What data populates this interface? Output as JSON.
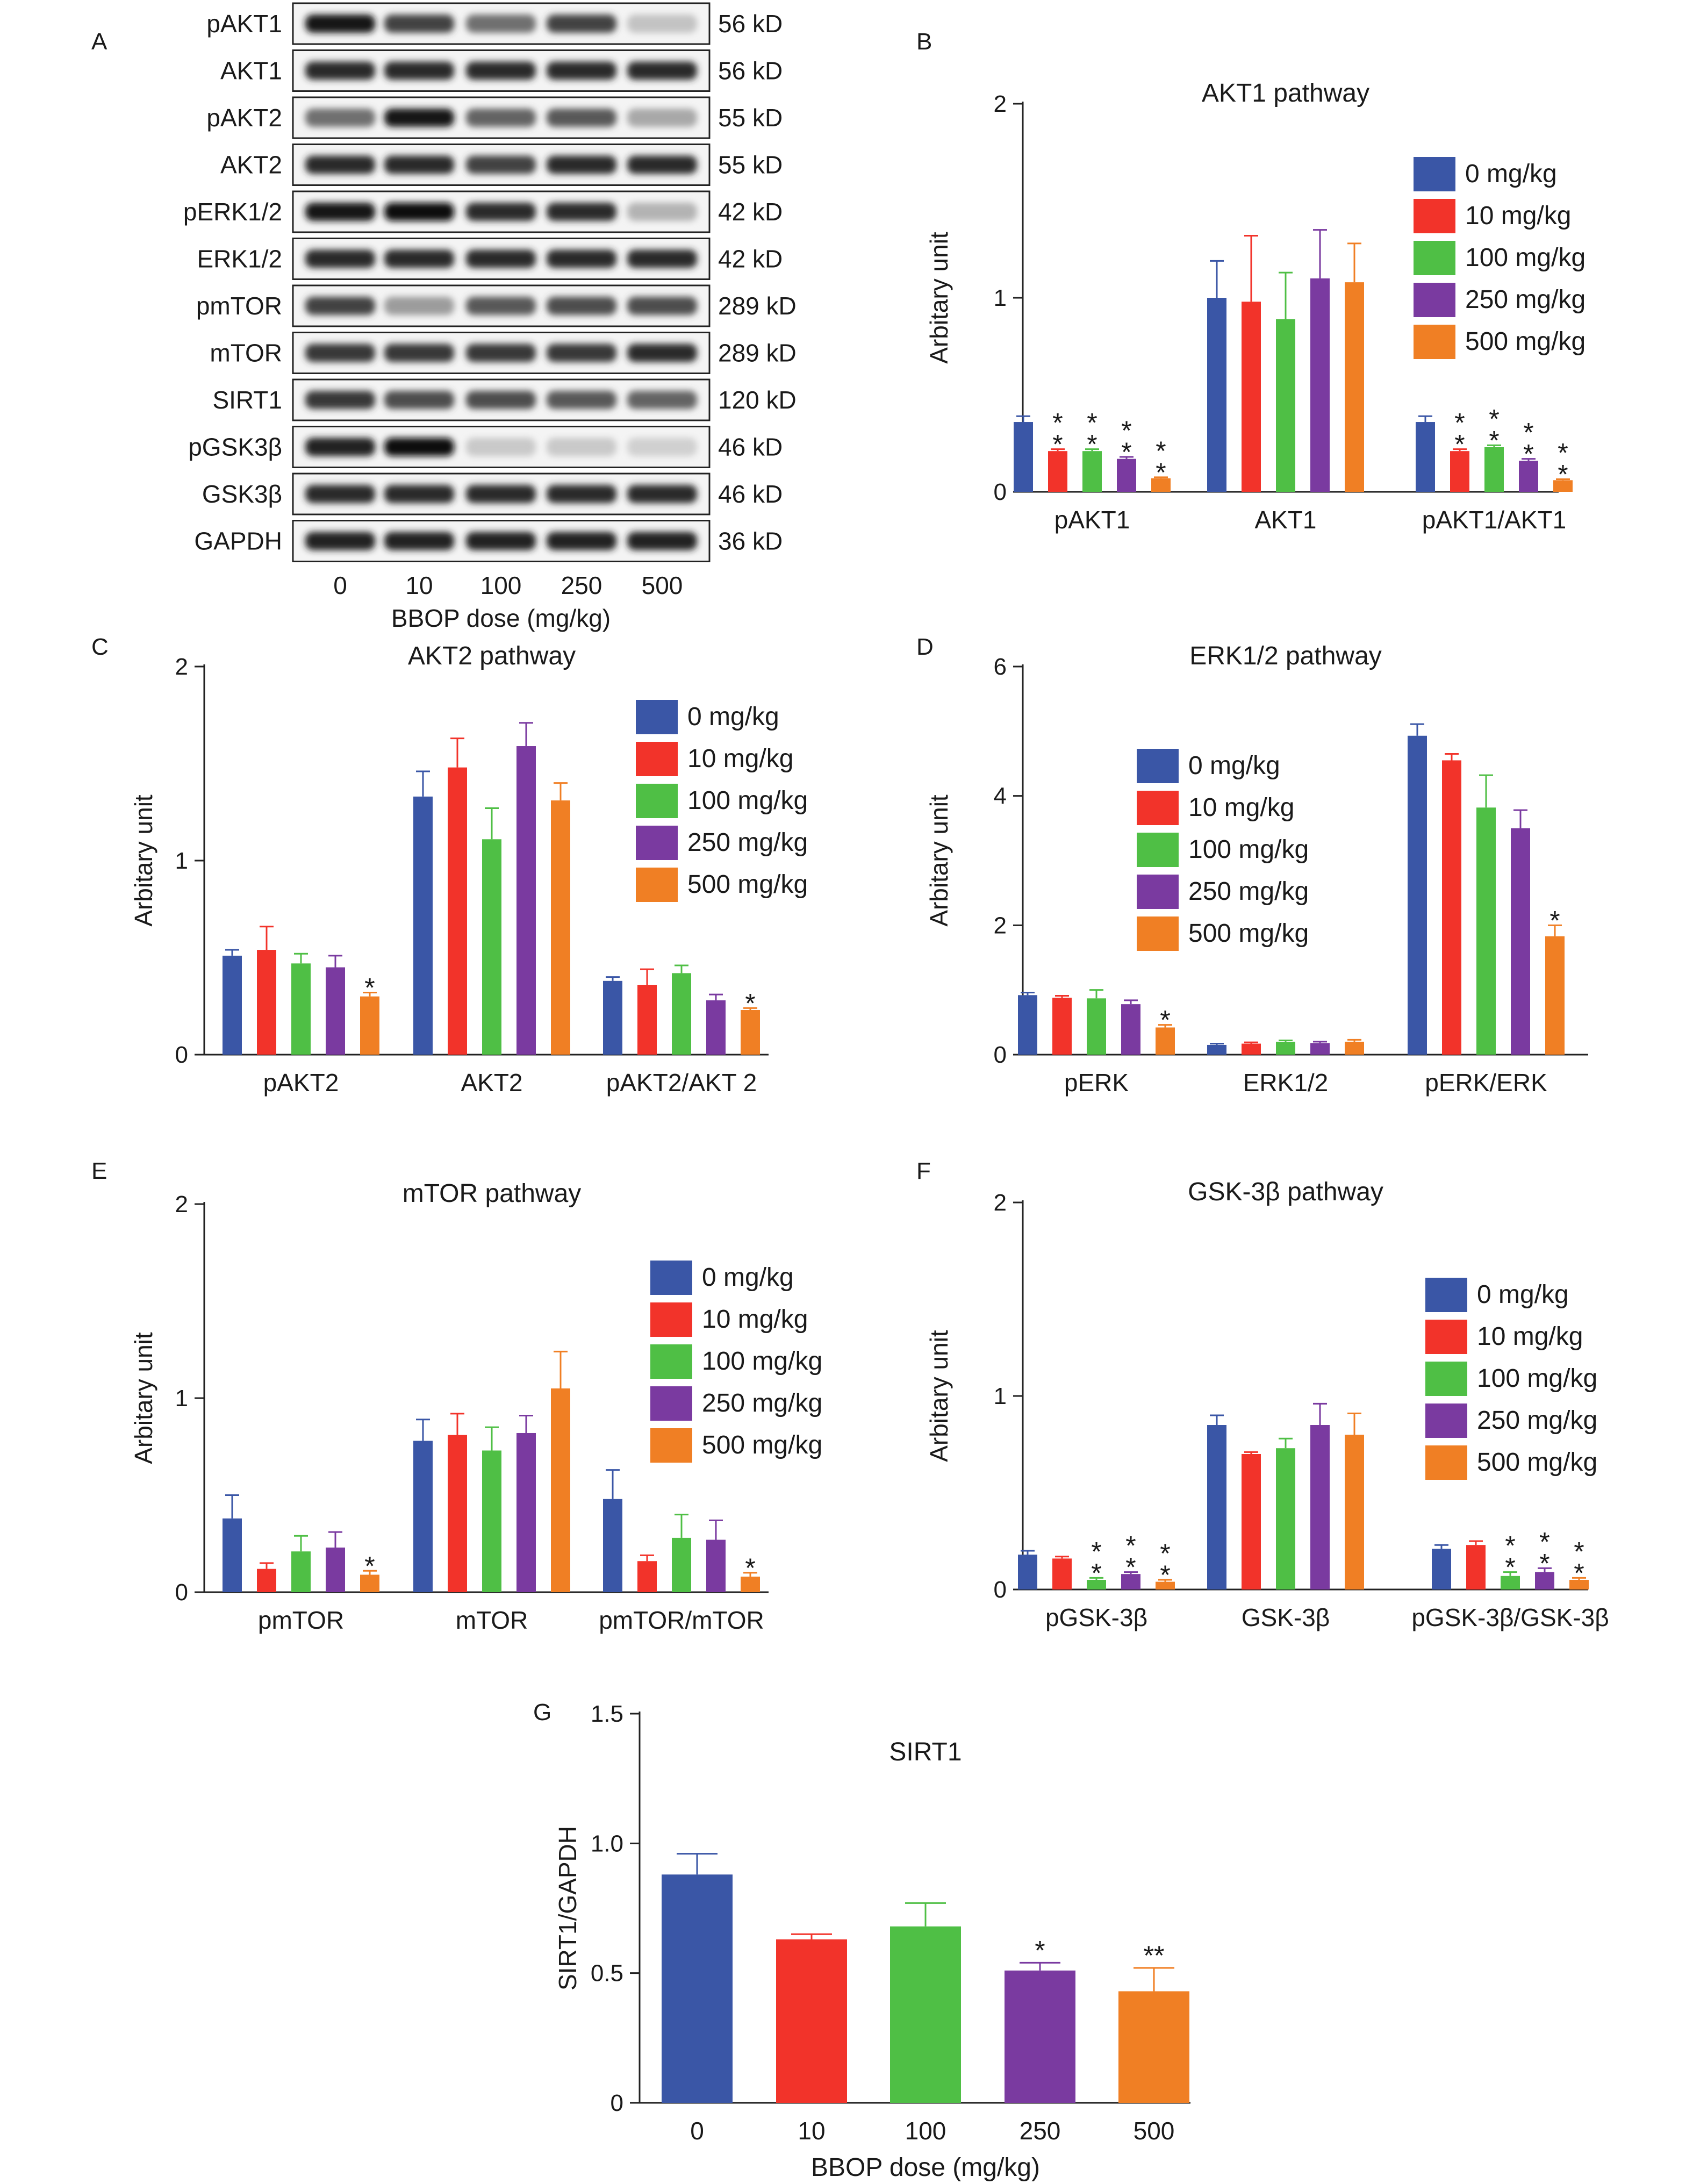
{
  "panel_letters": [
    "A",
    "B",
    "C",
    "D",
    "E",
    "F",
    "G"
  ],
  "colors": {
    "dose_0": "#3a56a6",
    "dose_10": "#f2332a",
    "dose_100": "#4fbf45",
    "dose_250": "#7a3aa0",
    "dose_500": "#f07f24",
    "axis": "#222222"
  },
  "western_blot": {
    "bands": [
      {
        "label": "pAKT1",
        "size": "56 kD",
        "intensity": [
          0.95,
          0.75,
          0.55,
          0.75,
          0.18
        ]
      },
      {
        "label": "AKT1",
        "size": "56 kD",
        "intensity": [
          0.85,
          0.85,
          0.85,
          0.85,
          0.85
        ]
      },
      {
        "label": "pAKT2",
        "size": "55 kD",
        "intensity": [
          0.55,
          0.95,
          0.6,
          0.65,
          0.3
        ]
      },
      {
        "label": "AKT2",
        "size": "55 kD",
        "intensity": [
          0.85,
          0.85,
          0.75,
          0.85,
          0.85
        ]
      },
      {
        "label": "pERK1/2",
        "size": "42 kD",
        "intensity": [
          0.95,
          1.0,
          0.85,
          0.85,
          0.25
        ]
      },
      {
        "label": "ERK1/2",
        "size": "42 kD",
        "intensity": [
          0.85,
          0.85,
          0.85,
          0.85,
          0.85
        ]
      },
      {
        "label": "pmTOR",
        "size": "289 kD",
        "intensity": [
          0.75,
          0.35,
          0.65,
          0.7,
          0.7
        ]
      },
      {
        "label": "mTOR",
        "size": "289 kD",
        "intensity": [
          0.8,
          0.8,
          0.8,
          0.8,
          0.85
        ]
      },
      {
        "label": "SIRT1",
        "size": "120 kD",
        "intensity": [
          0.8,
          0.7,
          0.7,
          0.65,
          0.6
        ]
      },
      {
        "label": "pGSK3β",
        "size": "46 kD",
        "intensity": [
          0.9,
          1.0,
          0.15,
          0.15,
          0.12
        ]
      },
      {
        "label": "GSK3β",
        "size": "46 kD",
        "intensity": [
          0.85,
          0.85,
          0.85,
          0.85,
          0.85
        ]
      },
      {
        "label": "GAPDH",
        "size": "36 kD",
        "intensity": [
          0.9,
          0.9,
          0.9,
          0.9,
          0.9
        ]
      }
    ],
    "lane_labels": [
      "0",
      "10",
      "100",
      "250",
      "500"
    ],
    "xlabel": "BBOP dose (mg/kg)"
  },
  "legend_entries": [
    "0 mg/kg",
    "10 mg/kg",
    "100 mg/kg",
    "250 mg/kg",
    "500 mg/kg"
  ],
  "chart_data": [
    {
      "panel": "B",
      "type": "bar",
      "title": "AKT1 pathway",
      "ylabel": "Arbitary unit",
      "ylim": [
        0,
        2
      ],
      "yticks": [
        0,
        1,
        2
      ],
      "legend_position": "top-right",
      "categories": [
        "pAKT1",
        "AKT1",
        "pAKT1/AKT1"
      ],
      "series": [
        {
          "name": "0 mg/kg",
          "values": [
            0.36,
            1.0,
            0.36
          ],
          "errors": [
            0.03,
            0.19,
            0.03
          ]
        },
        {
          "name": "10 mg/kg",
          "values": [
            0.21,
            0.98,
            0.21
          ],
          "errors": [
            0.01,
            0.34,
            0.01
          ]
        },
        {
          "name": "100 mg/kg",
          "values": [
            0.21,
            0.89,
            0.23
          ],
          "errors": [
            0.01,
            0.24,
            0.01
          ]
        },
        {
          "name": "250 mg/kg",
          "values": [
            0.17,
            1.1,
            0.16
          ],
          "errors": [
            0.01,
            0.25,
            0.01
          ]
        },
        {
          "name": "500 mg/kg",
          "values": [
            0.07,
            1.08,
            0.06
          ],
          "errors": [
            0.005,
            0.2,
            0.005
          ]
        }
      ],
      "annotations": [
        {
          "category": 0,
          "series": 1,
          "text": "**"
        },
        {
          "category": 0,
          "series": 2,
          "text": "**"
        },
        {
          "category": 0,
          "series": 3,
          "text": "**"
        },
        {
          "category": 0,
          "series": 4,
          "text": "**"
        },
        {
          "category": 2,
          "series": 1,
          "text": "**"
        },
        {
          "category": 2,
          "series": 2,
          "text": "**"
        },
        {
          "category": 2,
          "series": 3,
          "text": "**"
        },
        {
          "category": 2,
          "series": 4,
          "text": "**"
        }
      ]
    },
    {
      "panel": "C",
      "type": "bar",
      "title": "AKT2 pathway",
      "ylabel": "Arbitary unit",
      "ylim": [
        0,
        2
      ],
      "yticks": [
        0,
        1,
        2
      ],
      "legend_position": "top-right",
      "categories": [
        "pAKT2",
        "AKT2",
        "pAKT2/AKT 2"
      ],
      "series": [
        {
          "name": "0 mg/kg",
          "values": [
            0.51,
            1.33,
            0.38
          ],
          "errors": [
            0.03,
            0.13,
            0.02
          ]
        },
        {
          "name": "10 mg/kg",
          "values": [
            0.54,
            1.48,
            0.36
          ],
          "errors": [
            0.12,
            0.15,
            0.08
          ]
        },
        {
          "name": "100 mg/kg",
          "values": [
            0.47,
            1.11,
            0.42
          ],
          "errors": [
            0.05,
            0.16,
            0.04
          ]
        },
        {
          "name": "250 mg/kg",
          "values": [
            0.45,
            1.59,
            0.28
          ],
          "errors": [
            0.06,
            0.12,
            0.03
          ]
        },
        {
          "name": "500 mg/kg",
          "values": [
            0.3,
            1.31,
            0.23
          ],
          "errors": [
            0.02,
            0.09,
            0.01
          ]
        }
      ],
      "annotations": [
        {
          "category": 0,
          "series": 4,
          "text": "*"
        },
        {
          "category": 2,
          "series": 4,
          "text": "*"
        }
      ]
    },
    {
      "panel": "D",
      "type": "bar",
      "title": "ERK1/2 pathway",
      "ylabel": "Arbitary unit",
      "ylim": [
        0,
        6
      ],
      "yticks": [
        0,
        2,
        4,
        6
      ],
      "legend_position": "top-center",
      "categories": [
        "pERK",
        "ERK1/2",
        "pERK/ERK"
      ],
      "series": [
        {
          "name": "0 mg/kg",
          "values": [
            0.92,
            0.15,
            4.93
          ],
          "errors": [
            0.04,
            0.02,
            0.18
          ]
        },
        {
          "name": "10 mg/kg",
          "values": [
            0.88,
            0.17,
            4.55
          ],
          "errors": [
            0.03,
            0.02,
            0.1
          ]
        },
        {
          "name": "100 mg/kg",
          "values": [
            0.87,
            0.2,
            3.82
          ],
          "errors": [
            0.13,
            0.02,
            0.5
          ]
        },
        {
          "name": "250 mg/kg",
          "values": [
            0.78,
            0.18,
            3.5
          ],
          "errors": [
            0.06,
            0.02,
            0.28
          ]
        },
        {
          "name": "500 mg/kg",
          "values": [
            0.42,
            0.2,
            1.83
          ],
          "errors": [
            0.04,
            0.03,
            0.17
          ]
        }
      ],
      "annotations": [
        {
          "category": 0,
          "series": 4,
          "text": "*"
        },
        {
          "category": 2,
          "series": 4,
          "text": "*"
        }
      ]
    },
    {
      "panel": "E",
      "type": "bar",
      "title": "mTOR pathway",
      "ylabel": "Arbitary unit",
      "ylim": [
        0,
        2
      ],
      "yticks": [
        0,
        1,
        2
      ],
      "legend_position": "top-right",
      "categories": [
        "pmTOR",
        "mTOR",
        "pmTOR/mTOR"
      ],
      "series": [
        {
          "name": "0 mg/kg",
          "values": [
            0.38,
            0.78,
            0.48
          ],
          "errors": [
            0.12,
            0.11,
            0.15
          ]
        },
        {
          "name": "10 mg/kg",
          "values": [
            0.12,
            0.81,
            0.16
          ],
          "errors": [
            0.03,
            0.11,
            0.03
          ]
        },
        {
          "name": "100 mg/kg",
          "values": [
            0.21,
            0.73,
            0.28
          ],
          "errors": [
            0.08,
            0.12,
            0.12
          ]
        },
        {
          "name": "250 mg/kg",
          "values": [
            0.23,
            0.82,
            0.27
          ],
          "errors": [
            0.08,
            0.09,
            0.1
          ]
        },
        {
          "name": "500 mg/kg",
          "values": [
            0.09,
            1.05,
            0.08
          ],
          "errors": [
            0.02,
            0.19,
            0.02
          ]
        }
      ],
      "annotations": [
        {
          "category": 0,
          "series": 4,
          "text": "*"
        },
        {
          "category": 2,
          "series": 4,
          "text": "*"
        }
      ]
    },
    {
      "panel": "F",
      "type": "bar",
      "title": "GSK-3β pathway",
      "ylabel": "Arbitary unit",
      "ylim": [
        0,
        2
      ],
      "yticks": [
        0,
        1,
        2
      ],
      "legend_position": "top-right",
      "categories": [
        "pGSK-3β",
        "GSK-3β",
        "pGSK-3β/GSK-3β"
      ],
      "series": [
        {
          "name": "0 mg/kg",
          "values": [
            0.18,
            0.85,
            0.21
          ],
          "errors": [
            0.02,
            0.05,
            0.02
          ]
        },
        {
          "name": "10 mg/kg",
          "values": [
            0.16,
            0.7,
            0.23
          ],
          "errors": [
            0.01,
            0.01,
            0.02
          ]
        },
        {
          "name": "100 mg/kg",
          "values": [
            0.05,
            0.73,
            0.07
          ],
          "errors": [
            0.01,
            0.05,
            0.02
          ]
        },
        {
          "name": "250 mg/kg",
          "values": [
            0.08,
            0.85,
            0.09
          ],
          "errors": [
            0.01,
            0.11,
            0.02
          ]
        },
        {
          "name": "500 mg/kg",
          "values": [
            0.04,
            0.8,
            0.05
          ],
          "errors": [
            0.01,
            0.11,
            0.01
          ]
        }
      ],
      "annotations": [
        {
          "category": 0,
          "series": 2,
          "text": "**"
        },
        {
          "category": 0,
          "series": 3,
          "text": "**"
        },
        {
          "category": 0,
          "series": 4,
          "text": "**"
        },
        {
          "category": 2,
          "series": 2,
          "text": "**"
        },
        {
          "category": 2,
          "series": 3,
          "text": "**"
        },
        {
          "category": 2,
          "series": 4,
          "text": "**"
        }
      ]
    },
    {
      "panel": "G",
      "type": "bar",
      "title": "SIRT1",
      "ylabel": "SIRT1/GAPDH",
      "xlabel": "BBOP dose (mg/kg)",
      "ylim": [
        0,
        1.5
      ],
      "yticks": [
        "0",
        "0.5",
        "1.0",
        "1.5"
      ],
      "categories": [
        "0",
        "10",
        "100",
        "250",
        "500"
      ],
      "values": [
        0.88,
        0.63,
        0.68,
        0.51,
        0.43
      ],
      "errors": [
        0.08,
        0.02,
        0.09,
        0.03,
        0.09
      ],
      "annotations": [
        {
          "index": 3,
          "text": "*"
        },
        {
          "index": 4,
          "text": "**"
        }
      ]
    }
  ]
}
